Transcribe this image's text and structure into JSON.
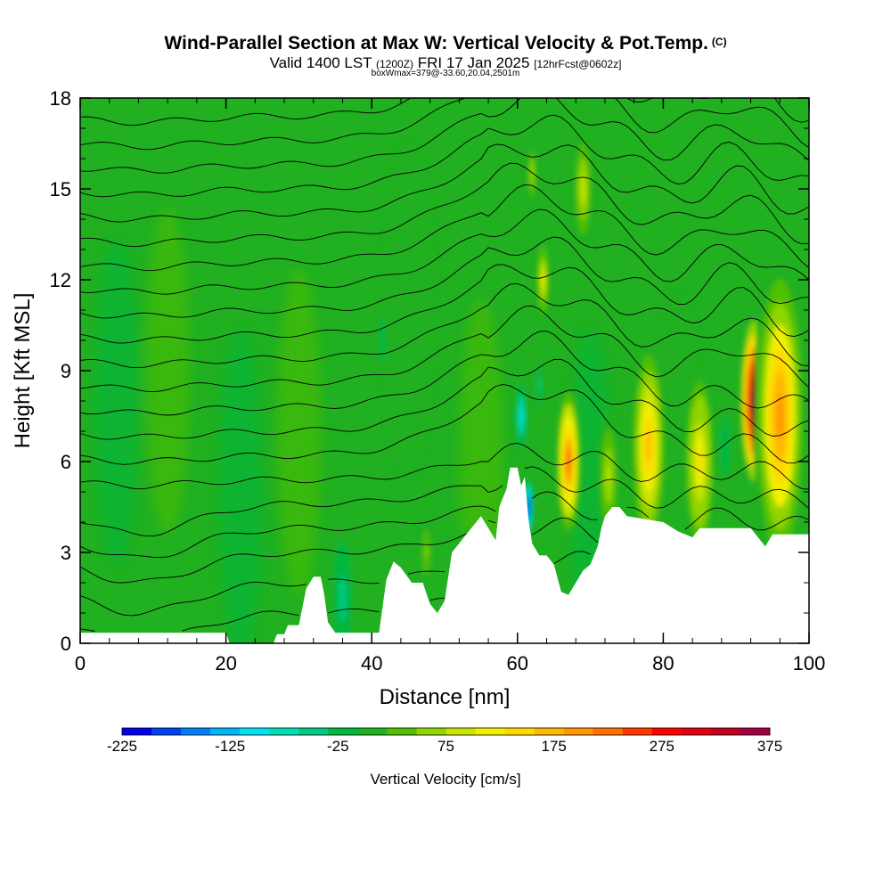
{
  "header": {
    "title": "Wind-Parallel Section at Max W: Vertical Velocity & Pot.Temp.",
    "copyright": "(C)",
    "valid_prefix": "Valid 1400 LST",
    "valid_utc": "(1200Z)",
    "valid_date": "FRI 17 Jan 2025",
    "forecast": "[12hrFcst@0602z]",
    "box_info": "boxWmax=379@-33.60,20.04,2501m"
  },
  "chart_data": {
    "type": "heatmap",
    "xlabel": "Distance [nm]",
    "ylabel": "Height [Kft MSL]",
    "xlim": [
      0,
      100
    ],
    "ylim": [
      0,
      18
    ],
    "x_ticks": [
      "0",
      "20",
      "40",
      "60",
      "80",
      "100"
    ],
    "y_ticks": [
      "0",
      "3",
      "6",
      "9",
      "12",
      "15",
      "18"
    ],
    "colorbar": {
      "label": "Vertical Velocity [cm/s]",
      "min": -225,
      "max": 375,
      "tick_labels": [
        "-225",
        "-125",
        "-25",
        "75",
        "175",
        "275",
        "375"
      ],
      "colors": [
        "#0000e8",
        "#0044ee",
        "#0080f4",
        "#00b4f8",
        "#00e0f0",
        "#00dcb8",
        "#00c880",
        "#00b840",
        "#20b020",
        "#50c000",
        "#90d400",
        "#c8e400",
        "#f0f000",
        "#ffd800",
        "#ffb800",
        "#ff9800",
        "#ff7000",
        "#ff3800",
        "#ff0000",
        "#e00010",
        "#c00020",
        "#a00040"
      ]
    },
    "terrain_kft": [
      [
        0,
        0.35
      ],
      [
        20,
        0.35
      ],
      [
        20.5,
        0
      ],
      [
        26.5,
        0
      ],
      [
        27,
        0.3
      ],
      [
        28,
        0.3
      ],
      [
        28.5,
        0.6
      ],
      [
        30,
        0.6
      ],
      [
        30.5,
        1.2
      ],
      [
        31,
        1.8
      ],
      [
        32,
        2.2
      ],
      [
        33,
        2.2
      ],
      [
        33.5,
        1.6
      ],
      [
        34,
        0.7
      ],
      [
        35,
        0.35
      ],
      [
        41,
        0.35
      ],
      [
        42,
        2.1
      ],
      [
        43,
        2.7
      ],
      [
        44,
        2.5
      ],
      [
        45.5,
        2.0
      ],
      [
        47,
        2.0
      ],
      [
        48,
        1.3
      ],
      [
        49,
        1.0
      ],
      [
        50,
        1.4
      ],
      [
        51,
        3.0
      ],
      [
        53,
        3.6
      ],
      [
        54,
        3.9
      ],
      [
        55,
        4.2
      ],
      [
        56,
        3.8
      ],
      [
        57,
        3.4
      ],
      [
        57.5,
        4.5
      ],
      [
        58.5,
        5.1
      ],
      [
        59,
        5.8
      ],
      [
        60,
        5.8
      ],
      [
        60.5,
        5.2
      ],
      [
        61,
        5.5
      ],
      [
        61.5,
        4.1
      ],
      [
        62,
        3.3
      ],
      [
        63,
        2.9
      ],
      [
        64,
        2.9
      ],
      [
        65,
        2.6
      ],
      [
        66,
        1.7
      ],
      [
        67,
        1.6
      ],
      [
        67.5,
        1.8
      ],
      [
        68,
        2.0
      ],
      [
        69,
        2.4
      ],
      [
        70,
        2.6
      ],
      [
        71,
        3.2
      ],
      [
        71.5,
        3.8
      ],
      [
        72,
        4.2
      ],
      [
        73,
        4.5
      ],
      [
        74,
        4.5
      ],
      [
        75,
        4.2
      ],
      [
        80,
        4.0
      ],
      [
        82,
        3.7
      ],
      [
        84,
        3.5
      ],
      [
        85,
        3.8
      ],
      [
        92,
        3.8
      ],
      [
        93,
        3.5
      ],
      [
        94,
        3.2
      ],
      [
        95,
        3.6
      ],
      [
        100,
        3.6
      ]
    ],
    "updrafts": [
      {
        "x": 92.5,
        "y": 8.0,
        "w": 3.5,
        "value": 379
      },
      {
        "x": 96.0,
        "y": 7.5,
        "w": 6.0,
        "value": 200
      },
      {
        "x": 67.0,
        "y": 6.0,
        "w": 3.0,
        "value": 220
      },
      {
        "x": 78.0,
        "y": 6.5,
        "w": 4.0,
        "value": 170
      },
      {
        "x": 85.0,
        "y": 6.0,
        "w": 3.5,
        "value": 140
      },
      {
        "x": 72.5,
        "y": 5.5,
        "w": 2.5,
        "value": 80
      },
      {
        "x": 63.5,
        "y": 12.0,
        "w": 1.5,
        "value": 110
      },
      {
        "x": 69.0,
        "y": 15.0,
        "w": 2.0,
        "value": 100
      },
      {
        "x": 62.0,
        "y": 15.5,
        "w": 1.2,
        "value": 70
      },
      {
        "x": 47.5,
        "y": 3.0,
        "w": 1.5,
        "value": 50
      },
      {
        "x": 53.0,
        "y": 2.5,
        "w": 1.5,
        "value": 40
      }
    ],
    "downdrafts": [
      {
        "x": 61.5,
        "y": 4.5,
        "w": 1.2,
        "value": -225
      },
      {
        "x": 60.5,
        "y": 7.5,
        "w": 1.5,
        "value": -100
      },
      {
        "x": 63.0,
        "y": 8.5,
        "w": 1.0,
        "value": -50
      },
      {
        "x": 36.0,
        "y": 1.5,
        "w": 3.0,
        "value": -45
      },
      {
        "x": 41.5,
        "y": 10.0,
        "w": 1.5,
        "value": -30
      },
      {
        "x": 88.5,
        "y": 6.5,
        "w": 2.0,
        "value": -30
      }
    ],
    "isentrope_heights_kft": [
      1.0,
      2.0,
      3.0,
      3.8,
      4.6,
      5.4,
      6.2,
      7.0,
      7.8,
      8.6,
      9.4,
      10.2,
      11.0,
      11.8,
      12.6,
      13.4,
      14.2,
      15.0,
      15.8,
      16.6,
      17.4
    ]
  }
}
